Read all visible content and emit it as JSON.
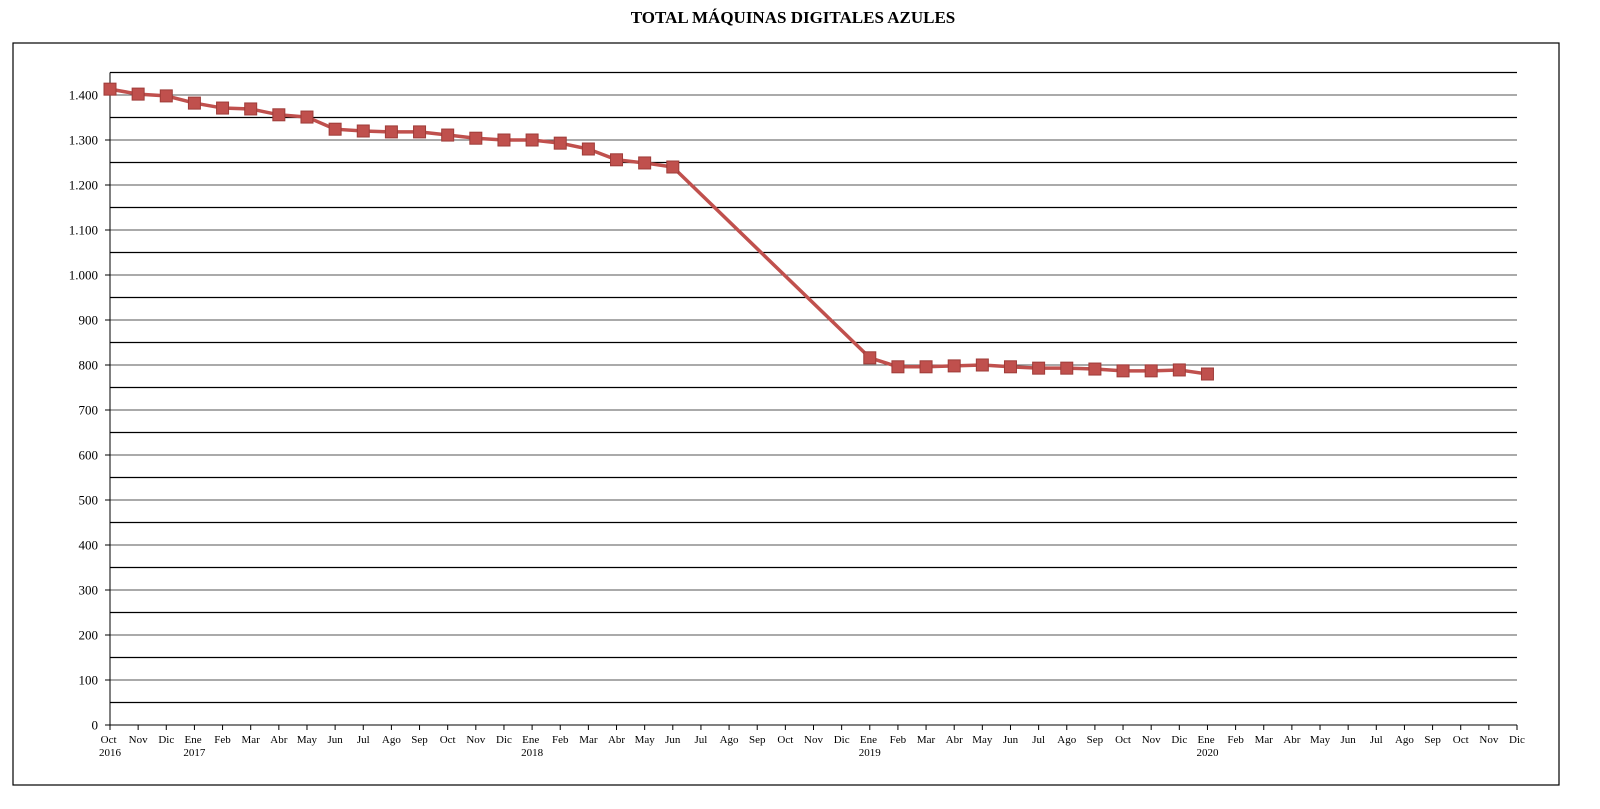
{
  "chart_data": {
    "type": "line",
    "title": "TOTAL MÁQUINAS DIGITALES AZULES",
    "categories": [
      "Oct 2016",
      "Nov",
      "Dic",
      "Ene 2017",
      "Feb",
      "Mar",
      "Abr",
      "May",
      "Jun",
      "Jul",
      "Ago",
      "Sep",
      "Oct",
      "Nov",
      "Dic",
      "Ene 2018",
      "Feb",
      "Mar",
      "Abr",
      "May",
      "Jun",
      "Jul",
      "Ago",
      "Sep",
      "Oct",
      "Nov",
      "Dic",
      "Ene 2019",
      "Feb",
      "Mar",
      "Abr",
      "May",
      "Jun",
      "Jul",
      "Ago",
      "Sep",
      "Oct",
      "Nov",
      "Dic",
      "Ene 2020",
      "Feb",
      "Mar",
      "Abr",
      "May",
      "Jun",
      "Jul",
      "Ago",
      "Sep",
      "Oct",
      "Nov",
      "Dic"
    ],
    "series": [
      {
        "color": "#c0504d",
        "values": [
          1413,
          1402,
          1398,
          1382,
          1371,
          1369,
          1356,
          1351,
          1324,
          1320,
          1318,
          1318,
          1311,
          1304,
          1300,
          1300,
          1293,
          1280,
          1256,
          1249,
          1240,
          null,
          null,
          null,
          null,
          null,
          null,
          816,
          796,
          796,
          798,
          800,
          796,
          793,
          793,
          791,
          787,
          787,
          789,
          780,
          null,
          null,
          null,
          null,
          null,
          null,
          null,
          null,
          null,
          null,
          null
        ]
      }
    ],
    "ylim": [
      0,
      1450
    ],
    "yticks": [
      0,
      100,
      200,
      300,
      400,
      500,
      600,
      700,
      800,
      900,
      {
        "value": 1000,
        "label": "1.000"
      },
      {
        "value": 1100,
        "label": "1.100"
      },
      {
        "value": 1200,
        "label": "1.200"
      },
      {
        "value": 1300,
        "label": "1.300"
      },
      {
        "value": 1400,
        "label": "1.400"
      }
    ],
    "minor_yticks": [
      50,
      150,
      250,
      350,
      450,
      550,
      650,
      750,
      850,
      950,
      1050,
      1150,
      1250,
      1350,
      1450
    ],
    "grid": true,
    "connect_gaps": true
  }
}
